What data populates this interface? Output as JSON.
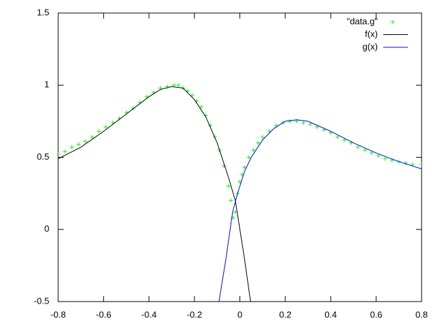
{
  "chart_data": {
    "type": "line",
    "xlim": [
      -0.8,
      0.8
    ],
    "ylim": [
      -0.5,
      1.5
    ],
    "xticks": [
      -0.8,
      -0.6,
      -0.4,
      -0.2,
      0,
      0.2,
      0.4,
      0.6,
      0.8
    ],
    "yticks": [
      -0.5,
      0,
      0.5,
      1,
      1.5
    ],
    "legend": "top-right",
    "series": [
      {
        "name": "\"data.g\"",
        "color": "#00ff00",
        "style": "points",
        "x": [
          -0.8,
          -0.77,
          -0.74,
          -0.71,
          -0.68,
          -0.65,
          -0.62,
          -0.59,
          -0.56,
          -0.53,
          -0.5,
          -0.47,
          -0.44,
          -0.41,
          -0.38,
          -0.35,
          -0.32,
          -0.29,
          -0.27,
          -0.25,
          -0.23,
          -0.21,
          -0.19,
          -0.17,
          -0.15,
          -0.13,
          -0.11,
          -0.09,
          -0.07,
          -0.05,
          -0.04,
          -0.03,
          -0.02,
          -0.01,
          0,
          0.01,
          0.02,
          0.04,
          0.06,
          0.08,
          0.1,
          0.13,
          0.16,
          0.19,
          0.22,
          0.25,
          0.28,
          0.31,
          0.34,
          0.37,
          0.4,
          0.43,
          0.46,
          0.49,
          0.52,
          0.55,
          0.58,
          0.61,
          0.64,
          0.67,
          0.7,
          0.73,
          0.76,
          0.8
        ],
        "values": [
          0.52,
          0.54,
          0.57,
          0.59,
          0.61,
          0.64,
          0.68,
          0.71,
          0.74,
          0.77,
          0.81,
          0.84,
          0.88,
          0.92,
          0.95,
          0.98,
          0.99,
          1.0,
          1.0,
          0.98,
          0.96,
          0.93,
          0.89,
          0.85,
          0.79,
          0.72,
          0.64,
          0.55,
          0.44,
          0.3,
          0.2,
          0.08,
          0.12,
          0.25,
          0.33,
          0.38,
          0.43,
          0.5,
          0.55,
          0.6,
          0.64,
          0.68,
          0.72,
          0.74,
          0.75,
          0.75,
          0.74,
          0.73,
          0.71,
          0.69,
          0.67,
          0.64,
          0.62,
          0.6,
          0.57,
          0.55,
          0.53,
          0.51,
          0.49,
          0.48,
          0.47,
          0.46,
          0.45,
          0.45
        ]
      },
      {
        "name": "f(x)",
        "color": "#000000",
        "style": "lines",
        "x": [
          -0.8,
          -0.7,
          -0.6,
          -0.5,
          -0.4,
          -0.35,
          -0.3,
          -0.25,
          -0.2,
          -0.15,
          -0.1,
          -0.05,
          -0.02,
          0,
          0.02,
          0.047
        ],
        "values": [
          0.49,
          0.57,
          0.68,
          0.8,
          0.92,
          0.97,
          0.99,
          0.98,
          0.9,
          0.78,
          0.6,
          0.36,
          0.2,
          0.0,
          -0.2,
          -0.5
        ]
      },
      {
        "name": "g(x)",
        "color": "#0000ff",
        "style": "lines",
        "x": [
          -0.092,
          -0.062,
          -0.032,
          -0.01,
          0,
          0.02,
          0.05,
          0.1,
          0.15,
          0.2,
          0.25,
          0.3,
          0.4,
          0.5,
          0.6,
          0.7,
          0.8
        ],
        "values": [
          -0.5,
          -0.21,
          0.12,
          0.25,
          0.3,
          0.4,
          0.5,
          0.62,
          0.7,
          0.75,
          0.76,
          0.75,
          0.68,
          0.6,
          0.53,
          0.47,
          0.42
        ]
      }
    ]
  }
}
